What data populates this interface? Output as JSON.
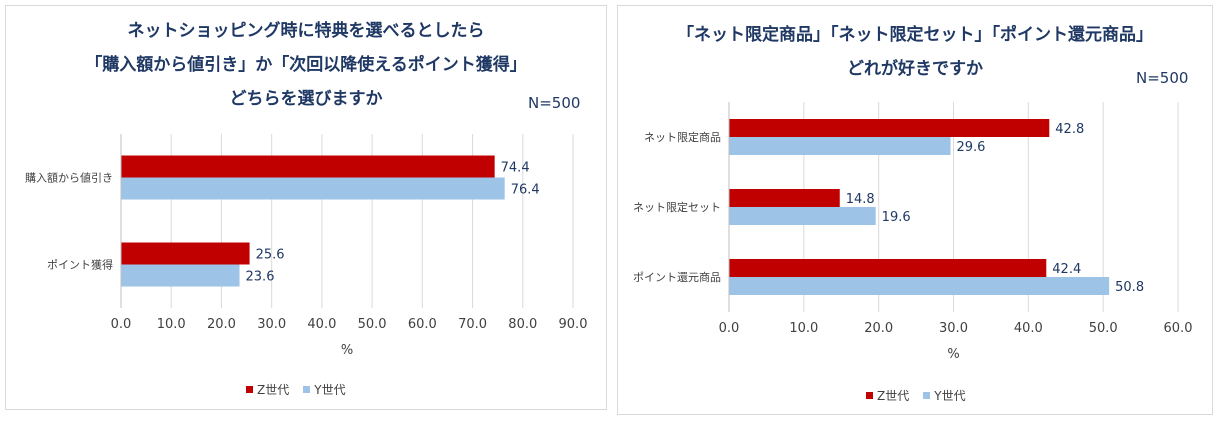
{
  "colors": {
    "z": "#c00000",
    "y": "#9dc3e6",
    "grid": "#d9d9d9",
    "text": "#404040",
    "title": "#1f3864"
  },
  "legend": {
    "z_label": "Z世代",
    "y_label": "Y世代"
  },
  "chart_data": [
    {
      "type": "bar",
      "orientation": "horizontal",
      "title_lines": [
        "ネットショッピング時に特典を選べるとしたら",
        "「購入額から値引き」か「次回以降使えるポイント獲得」",
        "どちらを選びますか"
      ],
      "n_label": "N=500",
      "categories": [
        "購入額から値引き",
        "ポイント獲得"
      ],
      "series": [
        {
          "name": "Z世代",
          "values": [
            74.4,
            25.6
          ]
        },
        {
          "name": "Y世代",
          "values": [
            76.4,
            23.6
          ]
        }
      ],
      "xlim": [
        0,
        90
      ],
      "xticks": [
        "0.0",
        "10.0",
        "20.0",
        "30.0",
        "40.0",
        "50.0",
        "60.0",
        "70.0",
        "80.0",
        "90.0"
      ],
      "xlabel": "%",
      "legend_position": "bottom"
    },
    {
      "type": "bar",
      "orientation": "horizontal",
      "title_lines": [
        "「ネット限定商品」「ネット限定セット」「ポイント還元商品」",
        "どれが好きですか"
      ],
      "n_label": "N=500",
      "categories": [
        "ネット限定商品",
        "ネット限定セット",
        "ポイント還元商品"
      ],
      "series": [
        {
          "name": "Z世代",
          "values": [
            42.8,
            14.8,
            42.4
          ]
        },
        {
          "name": "Y世代",
          "values": [
            29.6,
            19.6,
            50.8
          ]
        }
      ],
      "xlim": [
        0,
        60
      ],
      "xticks": [
        "0.0",
        "10.0",
        "20.0",
        "30.0",
        "40.0",
        "50.0",
        "60.0"
      ],
      "xlabel": "%",
      "legend_position": "bottom"
    }
  ]
}
